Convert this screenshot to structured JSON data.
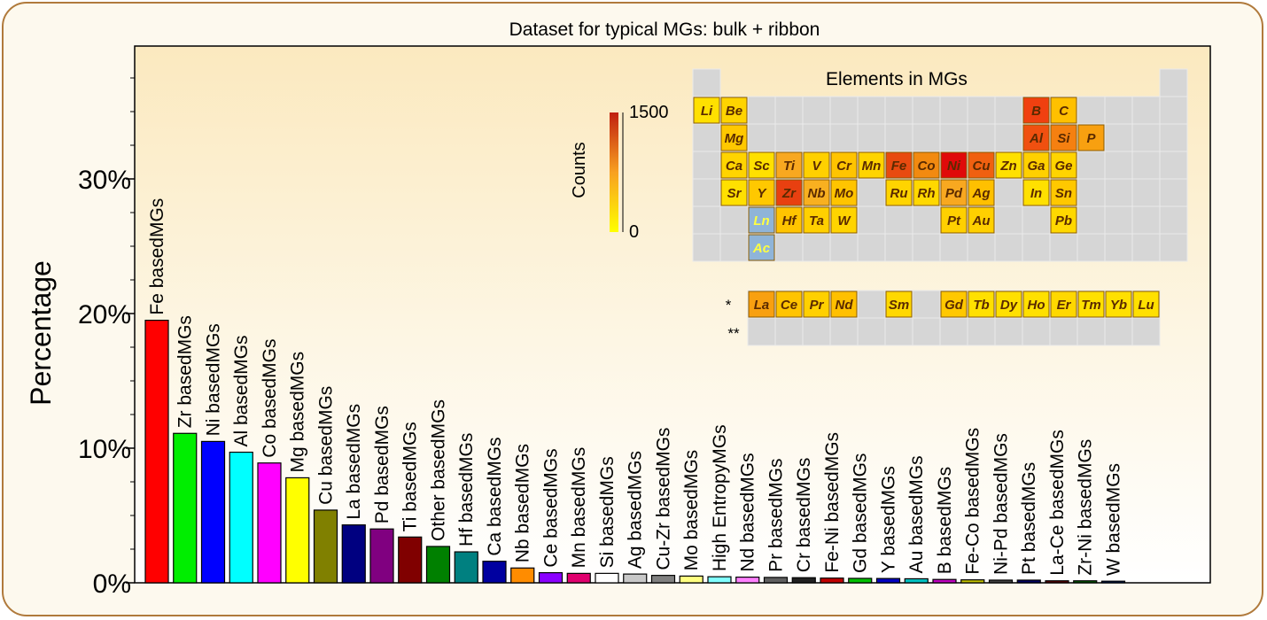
{
  "chart_data": {
    "type": "bar",
    "title": "Dataset  for typical MGs: bulk + ribbon",
    "xlabel": "",
    "ylabel": "Percentage",
    "ylim": [
      0,
      40
    ],
    "yticks": [
      0,
      10,
      20,
      30
    ],
    "ytick_labels": [
      "0%",
      "10%",
      "20%",
      "30%"
    ],
    "categories": [
      "Fe basedMGs",
      "Zr basedMGs",
      "Ni basedMGs",
      "Al basedMGs",
      "Co basedMGs",
      "Mg basedMGs",
      "Cu basedMGs",
      "La basedMGs",
      "Pd basedMGs",
      "Ti basedMGs",
      "Other basedMGs",
      "Hf basedMGs",
      "Ca basedMGs",
      "Nb basedMGs",
      "Ce basedMGs",
      "Mn basedMGs",
      "Si basedMGs",
      "Ag basedMGs",
      "Cu-Zr basedMGs",
      "Mo basedMGs",
      "High EntropyMGs",
      "Nd basedMGs",
      "Pr basedMGs",
      "Cr basedMGs",
      "Fe-Ni basedMGs",
      "Gd basedMGs",
      "Y basedMGs",
      "Au basedMGs",
      "B basedMGs",
      "Fe-Co basedMGs",
      "Ni-Pd basedMGs",
      "Pt basedMGs",
      "La-Ce basedMGs",
      "Zr-Ni basedMGs",
      "W basedMGs"
    ],
    "values": [
      19.5,
      11.1,
      10.5,
      9.7,
      8.9,
      7.8,
      5.4,
      4.3,
      4.0,
      3.4,
      2.7,
      2.3,
      1.6,
      1.1,
      0.75,
      0.7,
      0.7,
      0.65,
      0.55,
      0.5,
      0.45,
      0.42,
      0.4,
      0.38,
      0.35,
      0.33,
      0.32,
      0.3,
      0.25,
      0.22,
      0.2,
      0.2,
      0.15,
      0.15,
      0.12
    ],
    "colors": [
      "#ff0000",
      "#00ee00",
      "#0000ff",
      "#00ffff",
      "#ff00ff",
      "#ffff00",
      "#808000",
      "#000080",
      "#800080",
      "#800000",
      "#008000",
      "#008080",
      "#0000a0",
      "#ff8c00",
      "#8a00ff",
      "#e0006e",
      "#ffffff",
      "#c8c8c8",
      "#808080",
      "#ffff80",
      "#80ffff",
      "#ff80ff",
      "#606060",
      "#202020",
      "#c00000",
      "#00c000",
      "#0000c0",
      "#00c0c0",
      "#c000c0",
      "#c0c000",
      "#404040",
      "#000060",
      "#600000",
      "#006000",
      "#002060"
    ],
    "inset": {
      "title": "Elements in MGs",
      "colorbar_label": "Counts",
      "colorbar_max": "1500",
      "colorbar_min": "0",
      "lanthanide_row_marker": "*",
      "actinide_row_marker": "**",
      "cells": [
        {
          "symbol": "Li",
          "row": 1,
          "col": 1,
          "color": "#ffe000"
        },
        {
          "symbol": "Be",
          "row": 1,
          "col": 2,
          "color": "#ffd400"
        },
        {
          "symbol": "B",
          "row": 1,
          "col": 13,
          "color": "#f04010"
        },
        {
          "symbol": "C",
          "row": 1,
          "col": 14,
          "color": "#ffc000"
        },
        {
          "symbol": "Mg",
          "row": 2,
          "col": 2,
          "color": "#ffc800"
        },
        {
          "symbol": "Al",
          "row": 2,
          "col": 13,
          "color": "#f05010"
        },
        {
          "symbol": "Si",
          "row": 2,
          "col": 14,
          "color": "#f58010"
        },
        {
          "symbol": "P",
          "row": 2,
          "col": 15,
          "color": "#f8a010"
        },
        {
          "symbol": "Ca",
          "row": 3,
          "col": 2,
          "color": "#ffd400"
        },
        {
          "symbol": "Sc",
          "row": 3,
          "col": 3,
          "color": "#ffe000"
        },
        {
          "symbol": "Ti",
          "row": 3,
          "col": 4,
          "color": "#f8a820"
        },
        {
          "symbol": "V",
          "row": 3,
          "col": 5,
          "color": "#ffd000"
        },
        {
          "symbol": "Cr",
          "row": 3,
          "col": 6,
          "color": "#ffc400"
        },
        {
          "symbol": "Mn",
          "row": 3,
          "col": 7,
          "color": "#ffd400"
        },
        {
          "symbol": "Fe",
          "row": 3,
          "col": 8,
          "color": "#e84a10"
        },
        {
          "symbol": "Co",
          "row": 3,
          "col": 9,
          "color": "#f28a10"
        },
        {
          "symbol": "Ni",
          "row": 3,
          "col": 10,
          "color": "#e00a0a"
        },
        {
          "symbol": "Cu",
          "row": 3,
          "col": 11,
          "color": "#f06010"
        },
        {
          "symbol": "Zn",
          "row": 3,
          "col": 12,
          "color": "#ffe000"
        },
        {
          "symbol": "Ga",
          "row": 3,
          "col": 13,
          "color": "#ffd000"
        },
        {
          "symbol": "Ge",
          "row": 3,
          "col": 14,
          "color": "#ffd400"
        },
        {
          "symbol": "Sr",
          "row": 4,
          "col": 2,
          "color": "#ffe000"
        },
        {
          "symbol": "Y",
          "row": 4,
          "col": 3,
          "color": "#ffc800"
        },
        {
          "symbol": "Zr",
          "row": 4,
          "col": 4,
          "color": "#e84010"
        },
        {
          "symbol": "Nb",
          "row": 4,
          "col": 5,
          "color": "#f8b020"
        },
        {
          "symbol": "Mo",
          "row": 4,
          "col": 6,
          "color": "#ffc400"
        },
        {
          "symbol": "Ru",
          "row": 4,
          "col": 8,
          "color": "#ffd400"
        },
        {
          "symbol": "Rh",
          "row": 4,
          "col": 9,
          "color": "#ffd800"
        },
        {
          "symbol": "Pd",
          "row": 4,
          "col": 10,
          "color": "#f8a820"
        },
        {
          "symbol": "Ag",
          "row": 4,
          "col": 11,
          "color": "#ffc000"
        },
        {
          "symbol": "In",
          "row": 4,
          "col": 13,
          "color": "#ffe000"
        },
        {
          "symbol": "Sn",
          "row": 4,
          "col": 14,
          "color": "#ffc800"
        },
        {
          "symbol": "Ln",
          "row": 5,
          "col": 3,
          "color": "#8fb4d8",
          "text_color": "#ffff40"
        },
        {
          "symbol": "Hf",
          "row": 5,
          "col": 4,
          "color": "#ffc400"
        },
        {
          "symbol": "Ta",
          "row": 5,
          "col": 5,
          "color": "#ffd000"
        },
        {
          "symbol": "W",
          "row": 5,
          "col": 6,
          "color": "#ffd400"
        },
        {
          "symbol": "Pt",
          "row": 5,
          "col": 10,
          "color": "#ffd000"
        },
        {
          "symbol": "Au",
          "row": 5,
          "col": 11,
          "color": "#ffd000"
        },
        {
          "symbol": "Pb",
          "row": 5,
          "col": 14,
          "color": "#ffd800"
        },
        {
          "symbol": "Ac",
          "row": 6,
          "col": 3,
          "color": "#8fb4d8",
          "text_color": "#ffff40"
        },
        {
          "symbol": "La",
          "row": 8,
          "col": 3,
          "color": "#f8a010"
        },
        {
          "symbol": "Ce",
          "row": 8,
          "col": 4,
          "color": "#ffc400"
        },
        {
          "symbol": "Pr",
          "row": 8,
          "col": 5,
          "color": "#ffd000"
        },
        {
          "symbol": "Nd",
          "row": 8,
          "col": 6,
          "color": "#ffc000"
        },
        {
          "symbol": "Sm",
          "row": 8,
          "col": 8,
          "color": "#ffd800"
        },
        {
          "symbol": "Gd",
          "row": 8,
          "col": 10,
          "color": "#ffc800"
        },
        {
          "symbol": "Tb",
          "row": 8,
          "col": 11,
          "color": "#ffe000"
        },
        {
          "symbol": "Dy",
          "row": 8,
          "col": 12,
          "color": "#ffe000"
        },
        {
          "symbol": "Ho",
          "row": 8,
          "col": 13,
          "color": "#ffe000"
        },
        {
          "symbol": "Er",
          "row": 8,
          "col": 14,
          "color": "#ffd800"
        },
        {
          "symbol": "Tm",
          "row": 8,
          "col": 15,
          "color": "#ffe000"
        },
        {
          "symbol": "Yb",
          "row": 8,
          "col": 16,
          "color": "#ffe000"
        },
        {
          "symbol": "Lu",
          "row": 8,
          "col": 17,
          "color": "#ffe000"
        }
      ]
    }
  }
}
